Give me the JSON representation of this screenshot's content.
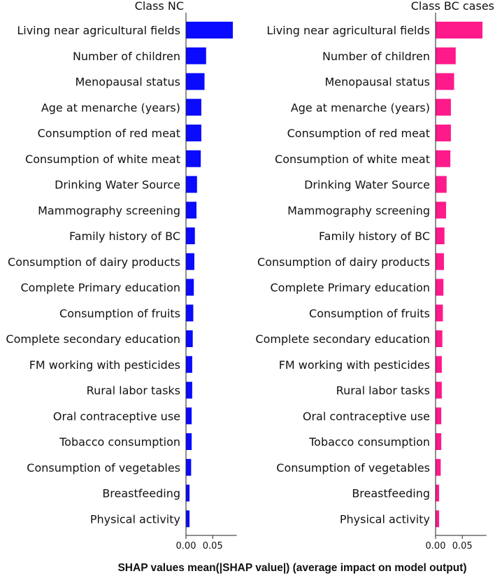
{
  "chart_data": {
    "type": "bar",
    "orientation": "horizontal",
    "xlabel": "SHAP values mean(|SHAP value|) (average impact on model output)",
    "features": [
      "Living near agricultural fields",
      "Number of children",
      "Menopausal status",
      "Age at menarche (years)",
      "Consumption of red meat",
      "Consumption of white meat",
      "Drinking Water Source",
      "Mammography screening",
      "Family history of BC",
      "Consumption of dairy products",
      "Complete Primary education",
      "Consumption of fruits",
      "Complete secondary education",
      "FM working with pesticides",
      "Rural labor tasks",
      "Oral contraceptive use",
      "Tobacco consumption",
      "Consumption of vegetables",
      "Breastfeeding",
      "Physical activity"
    ],
    "xlim": [
      0,
      0.095
    ],
    "xticks": [
      0.0,
      0.05
    ],
    "xtick_labels": [
      "0.00",
      "0.05"
    ],
    "panels": [
      {
        "title": "Class NC",
        "color": "#0a0aff",
        "values": [
          0.087,
          0.037,
          0.034,
          0.028,
          0.028,
          0.027,
          0.02,
          0.019,
          0.016,
          0.015,
          0.014,
          0.013,
          0.012,
          0.011,
          0.011,
          0.01,
          0.01,
          0.009,
          0.006,
          0.006
        ]
      },
      {
        "title": "Class BC cases",
        "color": "#ff1a8c",
        "values": [
          0.087,
          0.037,
          0.034,
          0.028,
          0.028,
          0.027,
          0.02,
          0.019,
          0.016,
          0.015,
          0.014,
          0.013,
          0.012,
          0.011,
          0.011,
          0.01,
          0.01,
          0.009,
          0.006,
          0.006
        ]
      }
    ]
  }
}
